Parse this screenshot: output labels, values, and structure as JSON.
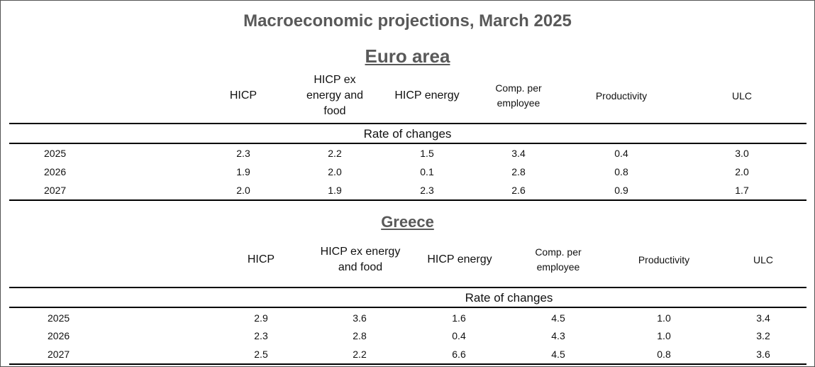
{
  "title": "Macroeconomic projections, March 2025",
  "euro_area": {
    "title": "Euro area",
    "headers": [
      "HICP",
      "HICP ex energy and food",
      "HICP energy",
      "Comp. per employee",
      "Productivity",
      "ULC"
    ],
    "rate_label": "Rate of changes",
    "rows": [
      {
        "year": "2025",
        "values": [
          "2.3",
          "2.2",
          "1.5",
          "3.4",
          "0.4",
          "3.0"
        ]
      },
      {
        "year": "2026",
        "values": [
          "1.9",
          "2.0",
          "0.1",
          "2.8",
          "0.8",
          "2.0"
        ]
      },
      {
        "year": "2027",
        "values": [
          "2.0",
          "1.9",
          "2.3",
          "2.6",
          "0.9",
          "1.7"
        ]
      }
    ]
  },
  "greece": {
    "title": "Greece",
    "headers": [
      "HICP",
      "HICP ex energy and food",
      "HICP energy",
      "Comp. per employee",
      "Productivity",
      "ULC"
    ],
    "rate_label": "Rate of changes",
    "rows": [
      {
        "year": "2025",
        "values": [
          "2.9",
          "3.6",
          "1.6",
          "4.5",
          "1.0",
          "3.4"
        ]
      },
      {
        "year": "2026",
        "values": [
          "2.3",
          "2.8",
          "0.4",
          "4.3",
          "1.0",
          "3.2"
        ]
      },
      {
        "year": "2027",
        "values": [
          "2.5",
          "2.2",
          "6.6",
          "4.5",
          "0.8",
          "3.6"
        ]
      }
    ]
  }
}
